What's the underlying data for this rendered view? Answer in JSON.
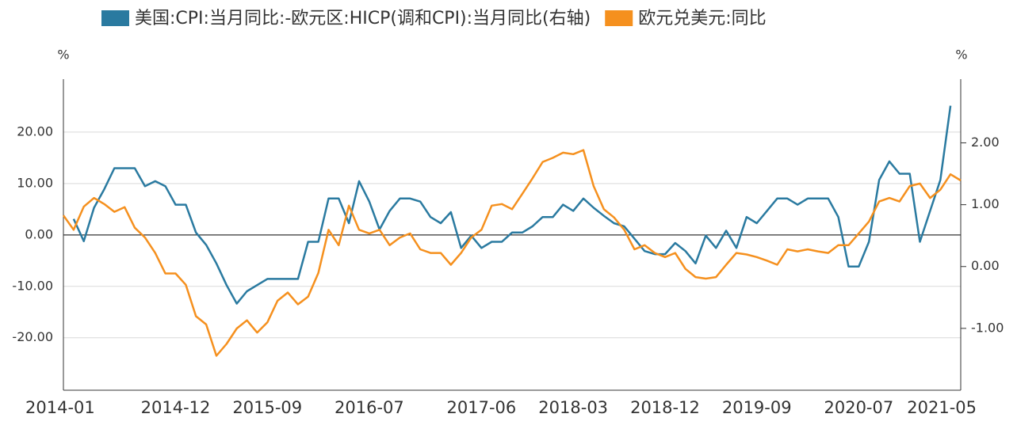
{
  "chart_data": {
    "type": "line",
    "ylabel": "%",
    "y2label": "%",
    "categories": [
      "2014-01",
      null,
      null,
      null,
      null,
      null,
      null,
      null,
      null,
      null,
      null,
      "2014-12",
      null,
      null,
      null,
      null,
      null,
      null,
      null,
      null,
      "2015-09",
      null,
      null,
      null,
      null,
      null,
      null,
      null,
      null,
      null,
      "2016-07",
      null,
      null,
      null,
      null,
      null,
      null,
      null,
      null,
      null,
      null,
      "2017-06",
      null,
      null,
      null,
      null,
      null,
      null,
      null,
      null,
      "2018-03",
      null,
      null,
      null,
      null,
      null,
      null,
      null,
      null,
      "2018-12",
      null,
      null,
      null,
      null,
      null,
      null,
      null,
      null,
      "2019-09",
      null,
      null,
      null,
      null,
      null,
      null,
      null,
      null,
      null,
      "2020-07",
      null,
      null,
      null,
      null,
      null,
      null,
      null,
      null,
      null,
      "2021-05"
    ],
    "series": [
      {
        "name": "美国:CPI:当月同比:-欧元区:HICP(调和CPI):当月同比(右轴)",
        "color": "#2a7aa0",
        "axis": "y2",
        "values": [
          null,
          0.77,
          0.41,
          0.95,
          1.25,
          1.59,
          1.59,
          1.59,
          1.3,
          1.38,
          1.3,
          1.0,
          1.0,
          0.55,
          0.35,
          0.05,
          -0.3,
          -0.6,
          -0.4,
          -0.3,
          -0.2,
          -0.2,
          -0.2,
          -0.2,
          0.4,
          0.4,
          1.1,
          1.1,
          0.7,
          1.38,
          1.05,
          0.6,
          0.9,
          1.1,
          1.1,
          1.05,
          0.8,
          0.7,
          0.88,
          0.3,
          0.5,
          0.3,
          0.4,
          0.4,
          0.55,
          0.55,
          0.65,
          0.8,
          0.8,
          1.0,
          0.9,
          1.1,
          0.95,
          0.82,
          0.7,
          0.65,
          0.45,
          0.25,
          0.2,
          0.2,
          0.38,
          0.25,
          0.05,
          0.5,
          0.3,
          0.58,
          0.3,
          0.8,
          0.7,
          0.9,
          1.1,
          1.1,
          1.0,
          1.1,
          1.1,
          1.1,
          0.8,
          0.0,
          0.0,
          0.4,
          1.4,
          1.7,
          1.5,
          1.5,
          0.4,
          0.9,
          1.4,
          2.6,
          null
        ]
      },
      {
        "name": "欧元兑美元:同比",
        "color": "#f5901e",
        "axis": "y",
        "values": [
          3.8,
          1.0,
          5.5,
          7.2,
          6.0,
          4.5,
          5.4,
          1.4,
          -0.5,
          -3.5,
          -7.5,
          -7.5,
          -9.7,
          -15.8,
          -17.4,
          -23.5,
          -21.2,
          -18.2,
          -16.6,
          -19,
          -17,
          -12.8,
          -11.2,
          -13.5,
          -12,
          -7.4,
          1,
          -2,
          5.7,
          1,
          0.3,
          1,
          -2,
          -0.5,
          0.3,
          -2.8,
          -3.5,
          -3.5,
          -5.8,
          -3.5,
          -0.5,
          1,
          5.7,
          6,
          5,
          8,
          11,
          14.2,
          15,
          16,
          15.7,
          16.5,
          9.5,
          5,
          3.4,
          1,
          -2.8,
          -2,
          -3.5,
          -4.3,
          -3.5,
          -6.6,
          -8.2,
          -8.5,
          -8.2,
          -5.8,
          -3.5,
          -3.8,
          -4.3,
          -5,
          -5.8,
          -2.8,
          -3.2,
          -2.8,
          -3.2,
          -3.5,
          -2,
          -2,
          0.3,
          2.6,
          6.5,
          7.2,
          6.5,
          9.5,
          10,
          7.2,
          8.8,
          11.8,
          10.6
        ]
      }
    ],
    "ylim": [
      -30.2,
      30.3
    ],
    "yticks": [
      {
        "value": -20,
        "label": "-20.00"
      },
      {
        "value": -10,
        "label": "-10.00"
      },
      {
        "value": 0,
        "label": "0.00"
      },
      {
        "value": 10,
        "label": "10.00"
      },
      {
        "value": 20,
        "label": "20.00"
      }
    ],
    "y2lim": [
      -2.0,
      3.03
    ],
    "y2ticks": [
      {
        "value": -1,
        "label": "-1.00"
      },
      {
        "value": 0,
        "label": "0.00"
      },
      {
        "value": 1,
        "label": "1.00"
      },
      {
        "value": 2,
        "label": "2.00"
      }
    ],
    "grid": true
  }
}
